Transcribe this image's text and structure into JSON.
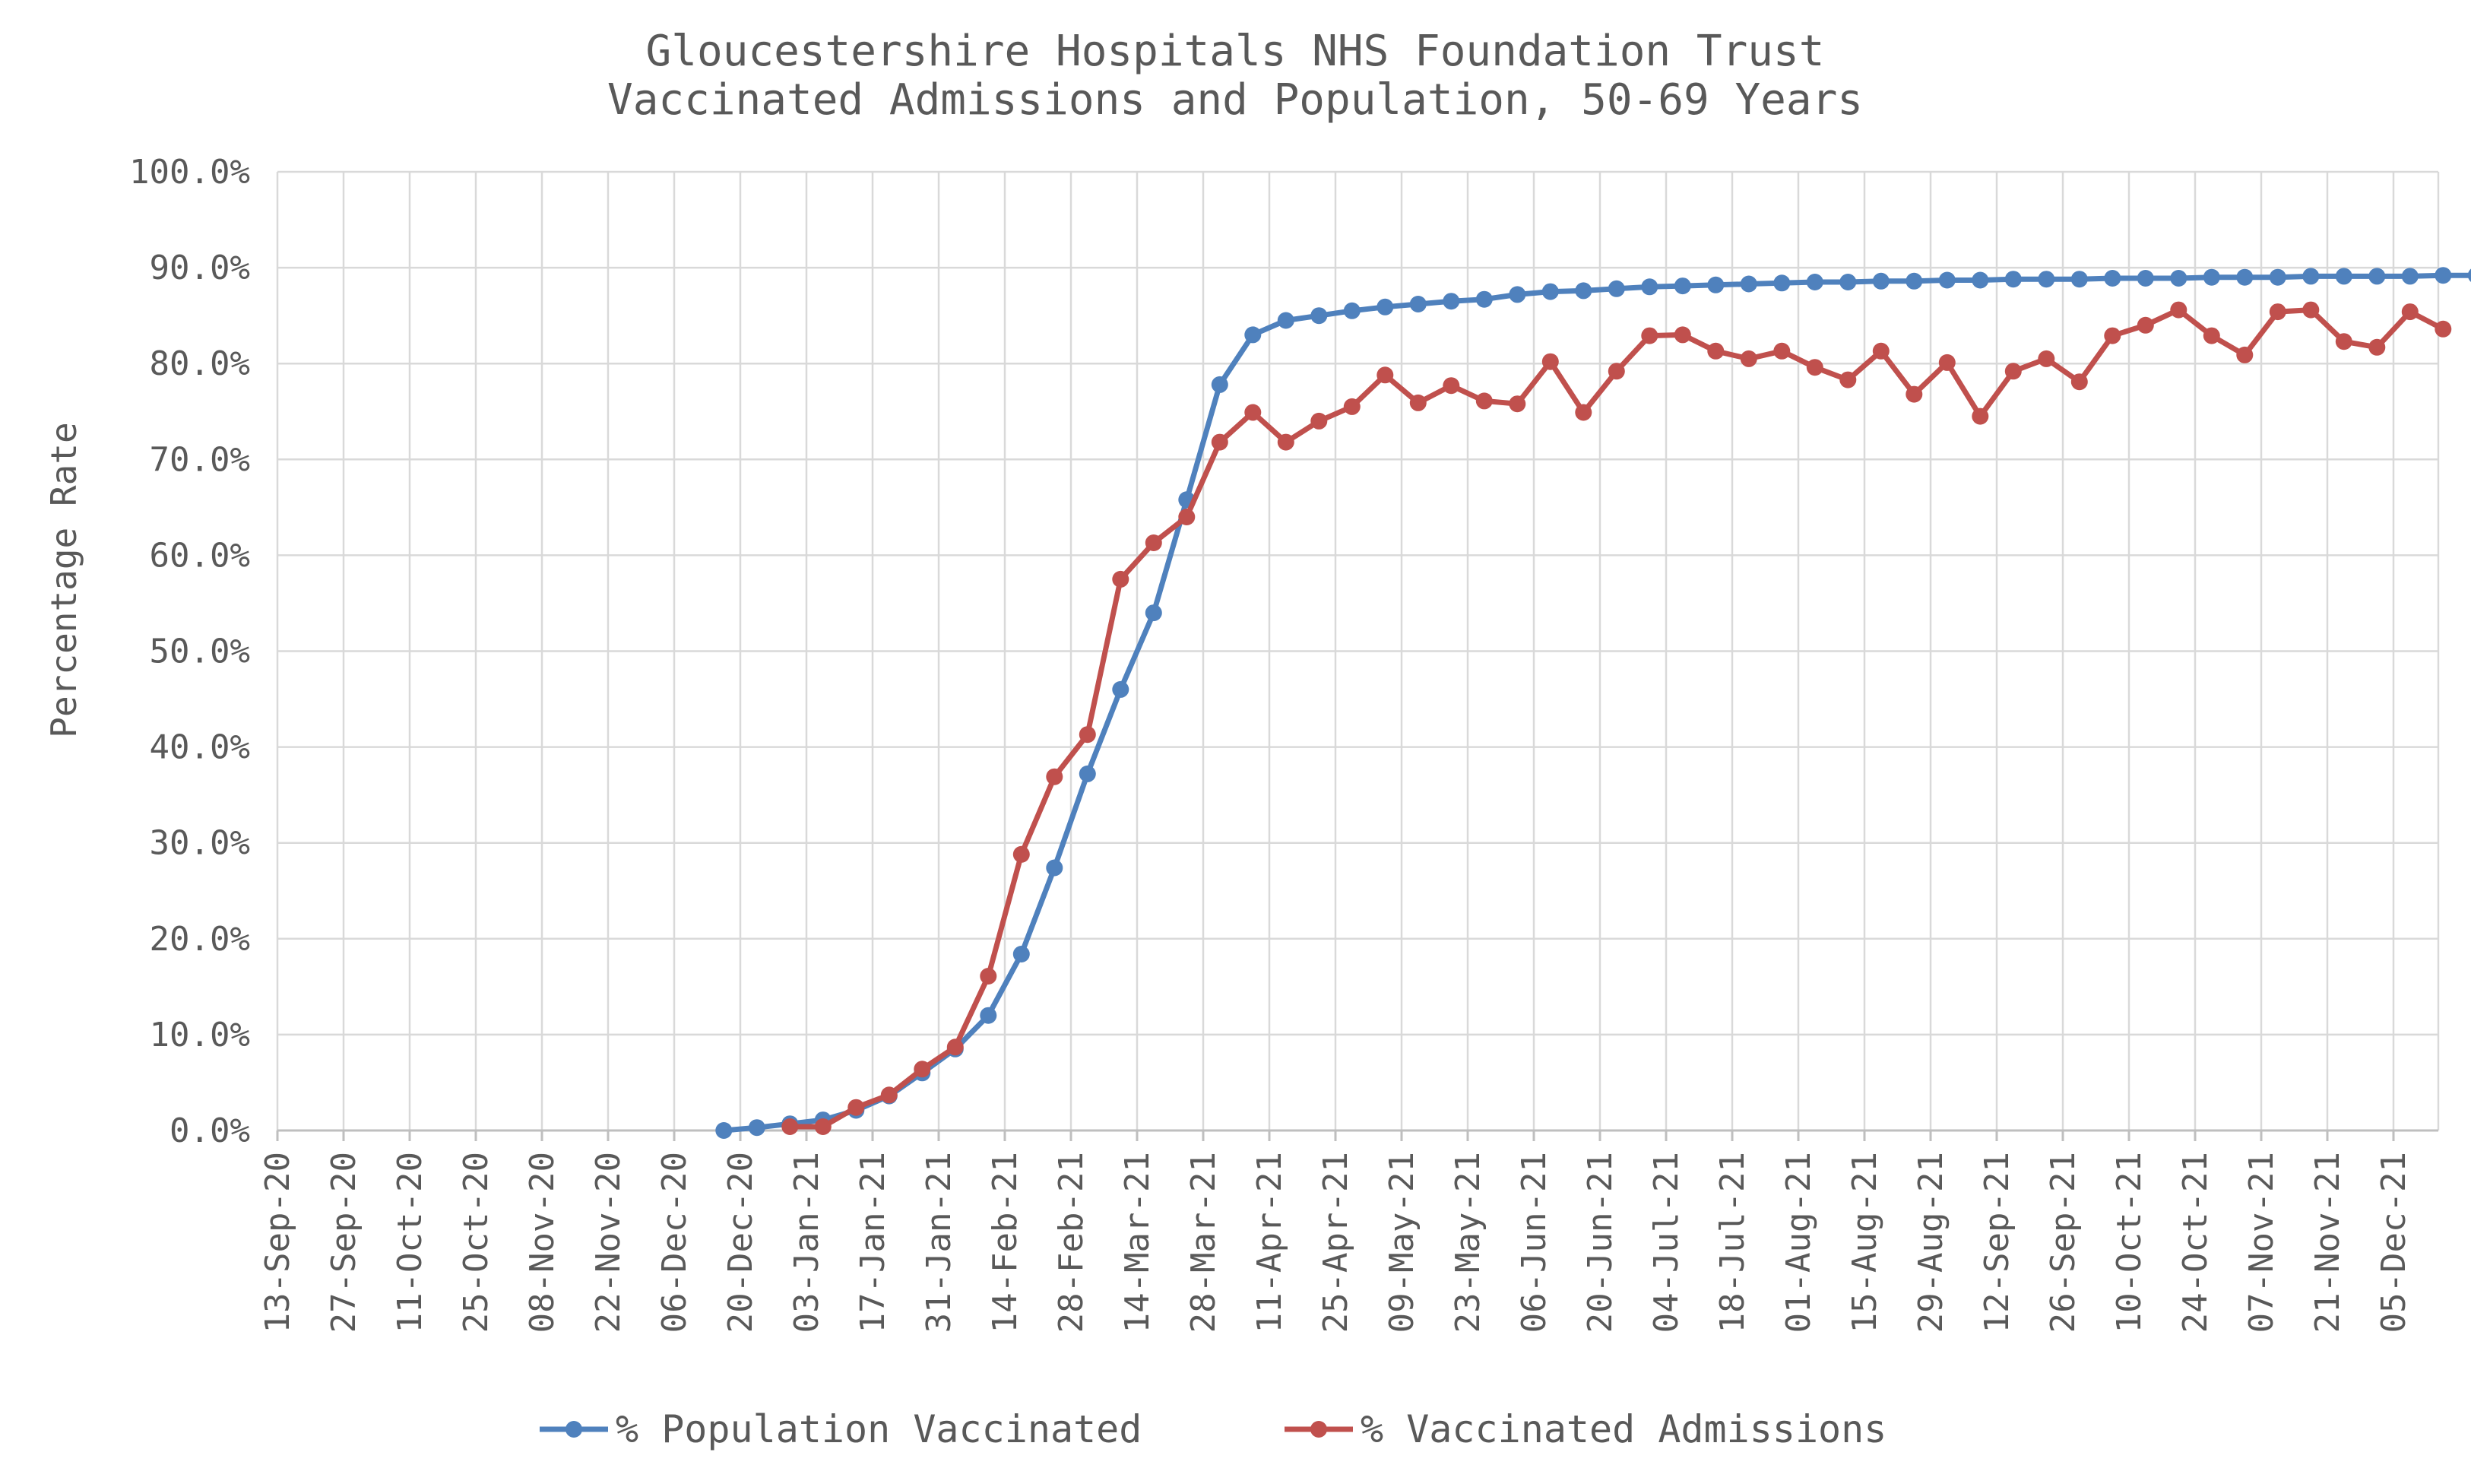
{
  "chart_data": {
    "type": "line",
    "title": "Gloucestershire Hospitals NHS Foundation Trust",
    "subtitle": "Vaccinated Admissions and Population, 50-69 Years",
    "ylabel": "Percentage Rate",
    "xlabel": "",
    "ylim": [
      0,
      100
    ],
    "y_ticks": [
      "0.0%",
      "10.0%",
      "20.0%",
      "30.0%",
      "40.0%",
      "50.0%",
      "60.0%",
      "70.0%",
      "80.0%",
      "90.0%",
      "100.0%"
    ],
    "x_tick_labels": [
      "13-Sep-20",
      "27-Sep-20",
      "11-Oct-20",
      "25-Oct-20",
      "08-Nov-20",
      "22-Nov-20",
      "06-Dec-20",
      "20-Dec-20",
      "03-Jan-21",
      "17-Jan-21",
      "31-Jan-21",
      "14-Feb-21",
      "28-Feb-21",
      "14-Mar-21",
      "28-Mar-21",
      "11-Apr-21",
      "25-Apr-21",
      "09-May-21",
      "23-May-21",
      "06-Jun-21",
      "20-Jun-21",
      "04-Jul-21",
      "18-Jul-21",
      "01-Aug-21",
      "15-Aug-21",
      "29-Aug-21",
      "12-Sep-21",
      "26-Sep-21",
      "10-Oct-21",
      "24-Oct-21",
      "07-Nov-21",
      "21-Nov-21",
      "05-Dec-21"
    ],
    "grid": true,
    "legend_position": "bottom",
    "series": [
      {
        "name": "% Population Vaccinated",
        "color": "#4f81bd",
        "start_week_index": 13,
        "values": [
          0.0,
          0.3,
          0.7,
          1.1,
          2.1,
          3.6,
          6.0,
          8.5,
          12.0,
          18.4,
          27.4,
          37.2,
          46.0,
          54.0,
          65.8,
          77.8,
          83.0,
          84.5,
          85.0,
          85.5,
          85.9,
          86.2,
          86.5,
          86.7,
          87.2,
          87.5,
          87.6,
          87.8,
          88.0,
          88.1,
          88.2,
          88.3,
          88.4,
          88.5,
          88.5,
          88.6,
          88.6,
          88.7,
          88.7,
          88.8,
          88.8,
          88.8,
          88.9,
          88.9,
          88.9,
          89.0,
          89.0,
          89.0,
          89.1,
          89.1,
          89.1,
          89.1,
          89.2,
          89.2,
          89.2,
          89.3
        ]
      },
      {
        "name": "% Vaccinated Admissions",
        "color": "#c0504d",
        "start_week_index": 15,
        "values": [
          0.4,
          0.4,
          2.4,
          3.7,
          6.4,
          8.7,
          16.1,
          28.8,
          36.9,
          41.3,
          57.5,
          61.3,
          64.0,
          71.8,
          74.9,
          71.8,
          74.0,
          75.5,
          78.8,
          75.9,
          77.7,
          76.1,
          75.8,
          80.2,
          74.9,
          79.2,
          82.9,
          83.0,
          81.3,
          80.5,
          81.3,
          79.6,
          78.3,
          81.3,
          76.8,
          80.1,
          74.5,
          79.2,
          80.5,
          78.1,
          82.9,
          84.0,
          85.6,
          82.9,
          80.9,
          85.4,
          85.6,
          82.3,
          81.7,
          85.4,
          83.6
        ]
      }
    ]
  }
}
